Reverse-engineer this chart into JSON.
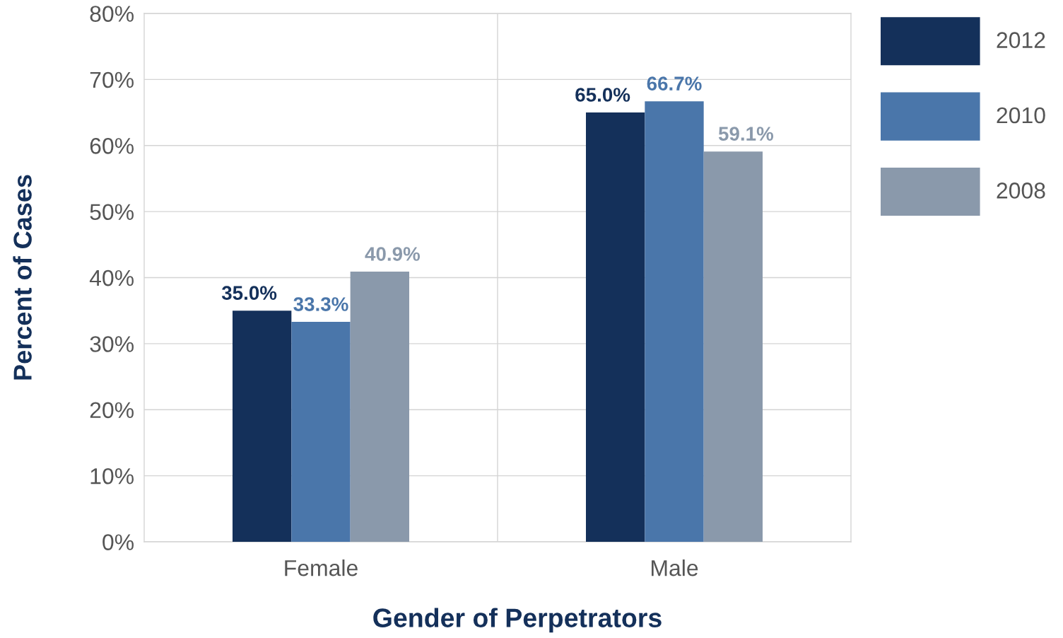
{
  "chart_data": {
    "type": "bar",
    "xlabel": "Gender of Perpetrators",
    "ylabel": "Percent of Cases",
    "categories": [
      "Female",
      "Male"
    ],
    "series": [
      {
        "name": "2012",
        "color": "#14305a",
        "values": [
          35.0,
          65.0
        ],
        "value_labels": [
          "35.0%",
          "65.0%"
        ]
      },
      {
        "name": "2010",
        "color": "#4a76aa",
        "values": [
          33.3,
          66.7
        ],
        "value_labels": [
          "33.3%",
          "66.7%"
        ]
      },
      {
        "name": "2008",
        "color": "#8a99ab",
        "values": [
          40.9,
          59.1
        ],
        "value_labels": [
          "40.9%",
          "59.1%"
        ]
      }
    ],
    "ylim": [
      0,
      80
    ],
    "yticks": [
      {
        "value": 0,
        "label": "0%"
      },
      {
        "value": 10,
        "label": "10%"
      },
      {
        "value": 20,
        "label": "20%"
      },
      {
        "value": 30,
        "label": "30%"
      },
      {
        "value": 40,
        "label": "40%"
      },
      {
        "value": 50,
        "label": "50%"
      },
      {
        "value": 60,
        "label": "60%"
      },
      {
        "value": 70,
        "label": "70%"
      },
      {
        "value": 80,
        "label": "80%"
      }
    ],
    "grid": true,
    "legend": "right"
  }
}
